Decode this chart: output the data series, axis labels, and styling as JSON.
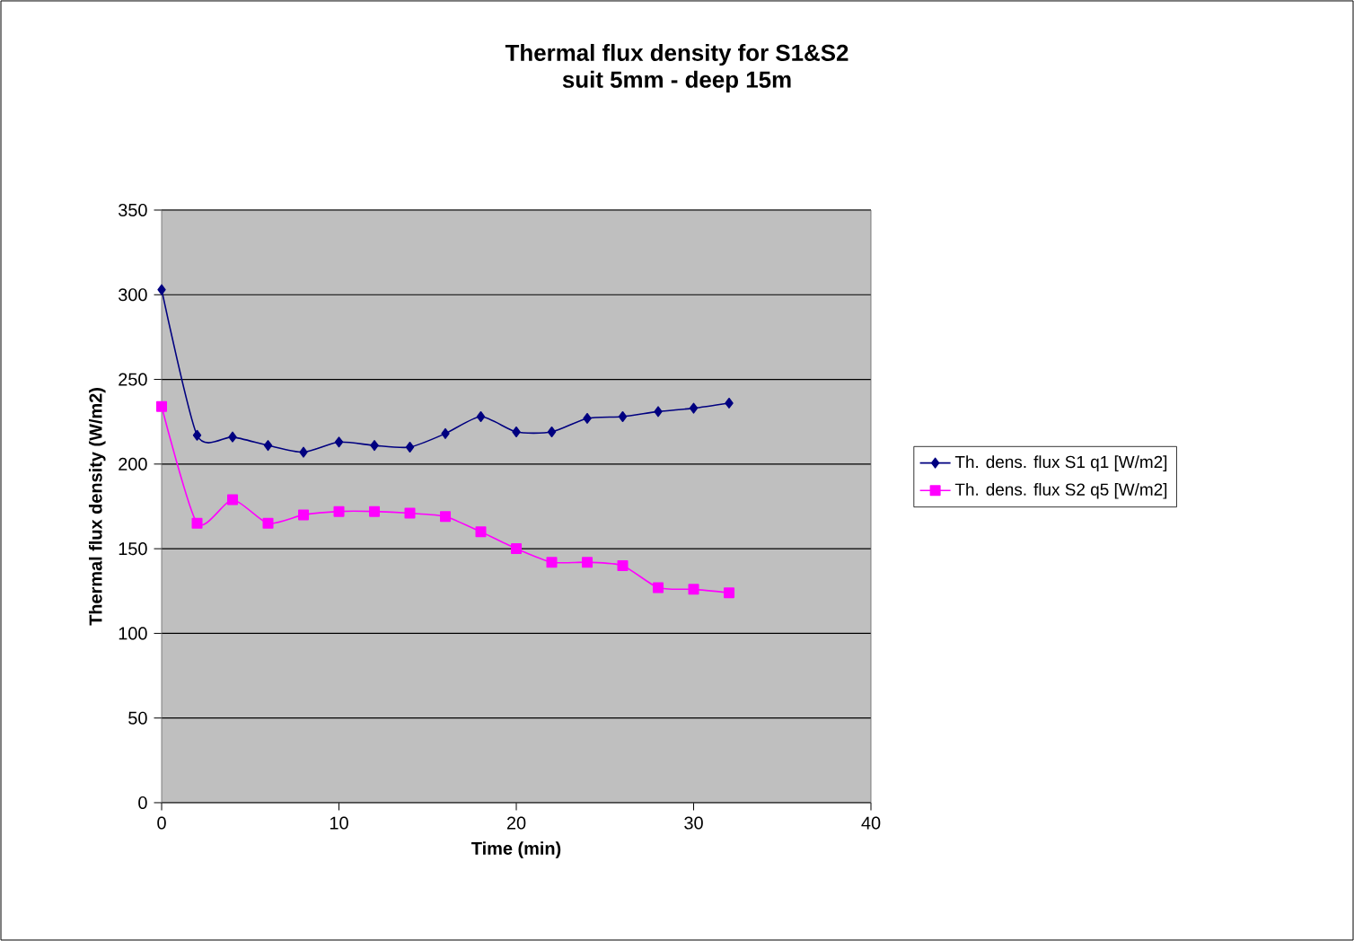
{
  "chart_data": {
    "type": "line",
    "title": "Thermal flux density for S1&S2",
    "subtitle": "suit 5mm - deep 15m",
    "xlabel": "Time (min)",
    "ylabel": "Thermal flux density (W/m2)",
    "xlim": [
      0,
      40
    ],
    "xticks": [
      0,
      10,
      20,
      30,
      40
    ],
    "ylim": [
      0,
      350
    ],
    "yticks": [
      0,
      50,
      100,
      150,
      200,
      250,
      300,
      350
    ],
    "grid": "y",
    "legend": "right",
    "series": [
      {
        "name": "Th. dens. flux S1 q1 [W/m2]",
        "color": "#000080",
        "marker": "diamond",
        "x": [
          0,
          2,
          4,
          6,
          8,
          10,
          12,
          14,
          16,
          18,
          20,
          22,
          24,
          26,
          28,
          30,
          32
        ],
        "values": [
          303,
          217,
          216,
          211,
          207,
          213,
          211,
          210,
          218,
          228,
          219,
          219,
          227,
          228,
          231,
          233,
          236
        ]
      },
      {
        "name": "Th. dens. flux S2 q5 [W/m2]",
        "color": "#ff00ff",
        "marker": "square",
        "x": [
          0,
          2,
          4,
          6,
          8,
          10,
          12,
          14,
          16,
          18,
          20,
          22,
          24,
          26,
          28,
          30,
          32
        ],
        "values": [
          234,
          165,
          179,
          165,
          170,
          172,
          172,
          171,
          169,
          160,
          150,
          142,
          142,
          140,
          127,
          126,
          124
        ]
      }
    ]
  }
}
